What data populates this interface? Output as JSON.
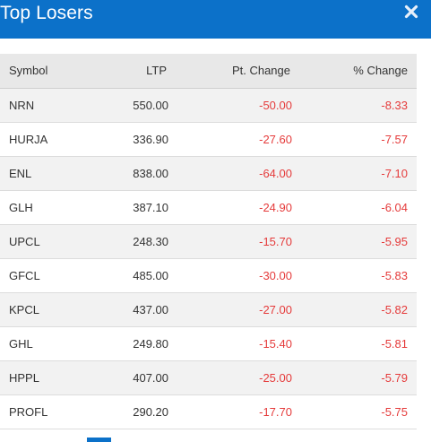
{
  "header": {
    "title": "Top Losers",
    "close_icon": "close-icon"
  },
  "colors": {
    "header_bg": "#0c71c9",
    "negative": "#e53b3b"
  },
  "table": {
    "columns": [
      "Symbol",
      "LTP",
      "Pt. Change",
      "% Change"
    ],
    "rows": [
      {
        "symbol": "NRN",
        "ltp": "550.00",
        "pt_change": "-50.00",
        "pct_change": "-8.33"
      },
      {
        "symbol": "HURJA",
        "ltp": "336.90",
        "pt_change": "-27.60",
        "pct_change": "-7.57"
      },
      {
        "symbol": "ENL",
        "ltp": "838.00",
        "pt_change": "-64.00",
        "pct_change": "-7.10"
      },
      {
        "symbol": "GLH",
        "ltp": "387.10",
        "pt_change": "-24.90",
        "pct_change": "-6.04"
      },
      {
        "symbol": "UPCL",
        "ltp": "248.30",
        "pt_change": "-15.70",
        "pct_change": "-5.95"
      },
      {
        "symbol": "GFCL",
        "ltp": "485.00",
        "pt_change": "-30.00",
        "pct_change": "-5.83"
      },
      {
        "symbol": "KPCL",
        "ltp": "437.00",
        "pt_change": "-27.00",
        "pct_change": "-5.82"
      },
      {
        "symbol": "GHL",
        "ltp": "249.80",
        "pt_change": "-15.40",
        "pct_change": "-5.81"
      },
      {
        "symbol": "HPPL",
        "ltp": "407.00",
        "pt_change": "-25.00",
        "pct_change": "-5.79"
      },
      {
        "symbol": "PROFL",
        "ltp": "290.20",
        "pt_change": "-17.70",
        "pct_change": "-5.75"
      }
    ]
  }
}
